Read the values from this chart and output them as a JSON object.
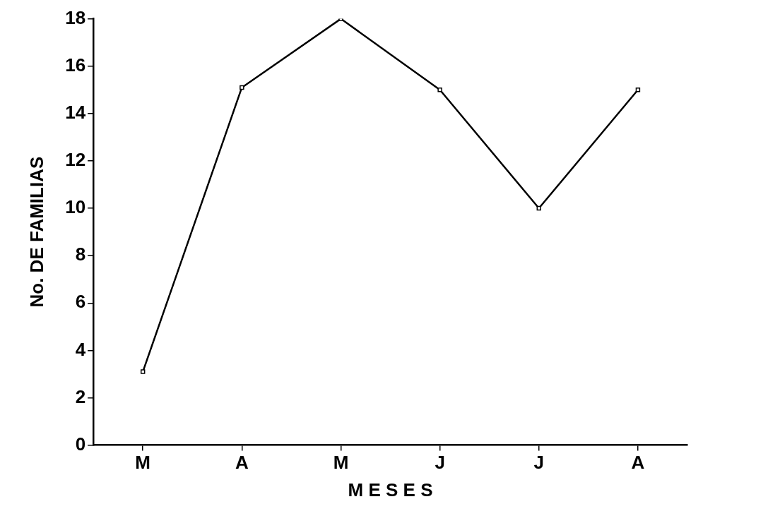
{
  "chart_data": {
    "type": "line",
    "xlabel": "M E S E S",
    "ylabel": "No. DE FAMILIAS",
    "categories": [
      "M",
      "A",
      "M",
      "J",
      "J",
      "A"
    ],
    "series": [
      {
        "color": "#000000",
        "values": [
          3.1,
          15.1,
          18.0,
          15.0,
          10.0,
          15.0
        ]
      }
    ],
    "ylim": [
      0,
      18
    ],
    "yticks": [
      0,
      2,
      4,
      6,
      8,
      10,
      12,
      14,
      16,
      18
    ],
    "grid": false,
    "legend": false,
    "marker": "square",
    "line_style": "solid"
  }
}
